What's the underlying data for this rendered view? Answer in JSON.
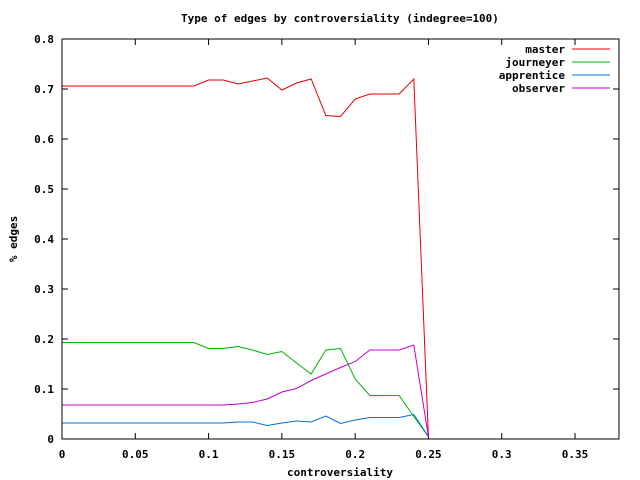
{
  "chart_data": {
    "type": "line",
    "title": "Type of edges by controversiality (indegree=100)",
    "xlabel": "controversiality",
    "ylabel": "% edges",
    "xlim": [
      0,
      0.38
    ],
    "ylim": [
      0,
      0.8
    ],
    "xticks": [
      0,
      0.05,
      0.1,
      0.15,
      0.2,
      0.25,
      0.3,
      0.35
    ],
    "xtick_labels": [
      "0",
      "0.05",
      "0.1",
      "0.15",
      "0.2",
      "0.25",
      "0.3",
      "0.35"
    ],
    "yticks": [
      0,
      0.1,
      0.2,
      0.3,
      0.4,
      0.5,
      0.6,
      0.7,
      0.8
    ],
    "ytick_labels": [
      "0",
      "0.1",
      "0.2",
      "0.3",
      "0.4",
      "0.5",
      "0.6",
      "0.7",
      "0.8"
    ],
    "grid": false,
    "legend_position": "top-right",
    "x": [
      0,
      0.01,
      0.02,
      0.03,
      0.04,
      0.05,
      0.06,
      0.07,
      0.08,
      0.09,
      0.1,
      0.11,
      0.12,
      0.13,
      0.14,
      0.15,
      0.16,
      0.17,
      0.18,
      0.19,
      0.2,
      0.21,
      0.22,
      0.23,
      0.24,
      0.25
    ],
    "series": [
      {
        "name": "master",
        "color": "#e00000",
        "values": [
          0.706,
          0.706,
          0.706,
          0.706,
          0.706,
          0.706,
          0.706,
          0.706,
          0.706,
          0.706,
          0.718,
          0.718,
          0.71,
          0.716,
          0.722,
          0.698,
          0.712,
          0.72,
          0.647,
          0.645,
          0.68,
          0.69,
          0.69,
          0.69,
          0.72,
          0.005
        ]
      },
      {
        "name": "journeyer",
        "color": "#00b000",
        "values": [
          0.193,
          0.193,
          0.193,
          0.193,
          0.193,
          0.193,
          0.193,
          0.193,
          0.193,
          0.193,
          0.181,
          0.181,
          0.185,
          0.178,
          0.169,
          0.175,
          0.152,
          0.13,
          0.178,
          0.181,
          0.12,
          0.087,
          0.087,
          0.087,
          0.045,
          0.005
        ]
      },
      {
        "name": "apprentice",
        "color": "#0070d0",
        "values": [
          0.032,
          0.032,
          0.032,
          0.032,
          0.032,
          0.032,
          0.032,
          0.032,
          0.032,
          0.032,
          0.032,
          0.032,
          0.034,
          0.034,
          0.027,
          0.032,
          0.036,
          0.034,
          0.046,
          0.031,
          0.038,
          0.043,
          0.043,
          0.043,
          0.049,
          0.005
        ]
      },
      {
        "name": "observer",
        "color": "#c000d0",
        "values": [
          0.068,
          0.068,
          0.068,
          0.068,
          0.068,
          0.068,
          0.068,
          0.068,
          0.068,
          0.068,
          0.068,
          0.068,
          0.07,
          0.073,
          0.08,
          0.094,
          0.101,
          0.117,
          0.13,
          0.143,
          0.155,
          0.178,
          0.178,
          0.178,
          0.188,
          0.005
        ]
      }
    ]
  }
}
